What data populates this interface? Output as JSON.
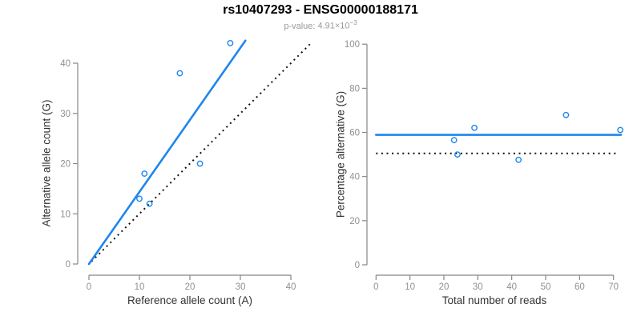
{
  "header": {
    "title": "rs10407293 - ENSG00000188171",
    "pvalue_label": "p-value:",
    "pvalue_base": "4.91×10",
    "pvalue_exponent": "−3"
  },
  "colors": {
    "accent_blue": "#1f86eb",
    "dotted_black": "#111111",
    "axis_gray": "#878787",
    "tick_label_gray": "#909090",
    "axis_title_dark": "#333333"
  },
  "chart_data": [
    {
      "type": "scatter",
      "panel": "left",
      "xlabel": "Reference allele count (A)",
      "ylabel": "Alternative allele count (G)",
      "xlim": [
        0,
        40
      ],
      "ylim": [
        0,
        40
      ],
      "xticks": [
        0,
        10,
        20,
        30,
        40
      ],
      "yticks": [
        0,
        10,
        20,
        30,
        40
      ],
      "grid": false,
      "points": [
        [
          10,
          13
        ],
        [
          11,
          18
        ],
        [
          12,
          12
        ],
        [
          18,
          38
        ],
        [
          22,
          20
        ],
        [
          28,
          44
        ]
      ],
      "fit_line": {
        "style": "solid",
        "x1": 0,
        "y1": 0,
        "x2": 31,
        "y2": 44.5
      },
      "identity_line": {
        "style": "dotted",
        "x1": 0.5,
        "y1": 0.5,
        "x2": 43.8,
        "y2": 43.8
      }
    },
    {
      "type": "scatter",
      "panel": "right",
      "xlabel": "Total number of reads",
      "ylabel": "Percentage alternative (G)",
      "xlim": [
        0,
        72.5
      ],
      "ylim": [
        0,
        100
      ],
      "xticks": [
        0,
        10,
        20,
        30,
        40,
        50,
        60,
        70
      ],
      "yticks": [
        0,
        20,
        40,
        60,
        80,
        100
      ],
      "grid": false,
      "points": [
        [
          23,
          56.5
        ],
        [
          24,
          50
        ],
        [
          29,
          62.1
        ],
        [
          42,
          47.6
        ],
        [
          56,
          67.9
        ],
        [
          72,
          61.1
        ]
      ],
      "fit_line": {
        "style": "solid",
        "x1": 0,
        "y1": 58.9,
        "x2": 72.2,
        "y2": 58.9
      },
      "identity_line": {
        "style": "dotted",
        "x1": 0,
        "y1": 50.5,
        "x2": 70.8,
        "y2": 50.5
      }
    }
  ]
}
